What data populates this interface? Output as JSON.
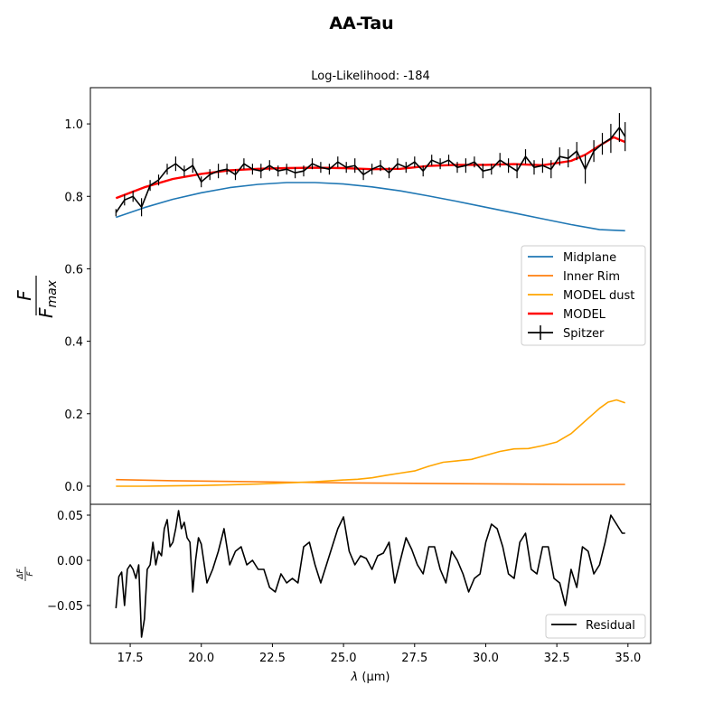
{
  "figure": {
    "title": "AA-Tau",
    "subtitle": "Log-Likelihood: -184"
  },
  "chart_data": [
    {
      "type": "line",
      "panel": "main",
      "title": "Log-Likelihood: -184",
      "xlabel": "",
      "ylabel_num": "F",
      "ylabel_den": "F",
      "ylabel_den_sub": "max",
      "xlim": [
        16.1,
        35.8
      ],
      "ylim": [
        -0.05,
        1.1
      ],
      "yticks": [
        0.0,
        0.2,
        0.4,
        0.6,
        0.8,
        1.0
      ],
      "ytick_labels": [
        "0.0",
        "0.2",
        "0.4",
        "0.6",
        "0.8",
        "1.0"
      ],
      "legend_position": "center-right",
      "series": [
        {
          "name": "Midplane",
          "color": "#1f77b4",
          "x": [
            17.0,
            18.0,
            19.0,
            20.0,
            21.0,
            22.0,
            23.0,
            24.0,
            25.0,
            26.0,
            27.0,
            28.0,
            29.0,
            30.0,
            31.0,
            32.0,
            33.0,
            34.0,
            34.9
          ],
          "y": [
            0.742,
            0.769,
            0.792,
            0.81,
            0.824,
            0.833,
            0.838,
            0.838,
            0.834,
            0.826,
            0.815,
            0.801,
            0.786,
            0.77,
            0.754,
            0.738,
            0.722,
            0.708,
            0.705
          ]
        },
        {
          "name": "Inner Rim",
          "color": "#ff7f0e",
          "x": [
            17.0,
            19.0,
            21.0,
            23.0,
            25.0,
            27.0,
            29.0,
            31.0,
            33.0,
            34.9
          ],
          "y": [
            0.018,
            0.015,
            0.013,
            0.011,
            0.009,
            0.008,
            0.007,
            0.006,
            0.005,
            0.005
          ]
        },
        {
          "name": "MODEL dust",
          "color": "#ffa500",
          "x": [
            17.0,
            18.0,
            19.0,
            20.0,
            21.0,
            22.0,
            23.0,
            24.0,
            25.0,
            25.5,
            26.0,
            26.5,
            27.0,
            27.5,
            28.0,
            28.5,
            29.0,
            29.5,
            30.0,
            30.5,
            31.0,
            31.5,
            32.0,
            32.5,
            33.0,
            33.5,
            34.0,
            34.3,
            34.6,
            34.9
          ],
          "y": [
            0.0,
            0.0,
            0.001,
            0.002,
            0.004,
            0.006,
            0.009,
            0.012,
            0.017,
            0.019,
            0.023,
            0.03,
            0.036,
            0.042,
            0.055,
            0.066,
            0.07,
            0.074,
            0.085,
            0.096,
            0.103,
            0.104,
            0.112,
            0.122,
            0.145,
            0.18,
            0.215,
            0.232,
            0.238,
            0.23
          ]
        },
        {
          "name": "MODEL",
          "color": "#ff0000",
          "x": [
            17.0,
            18.0,
            19.0,
            20.0,
            21.0,
            22.0,
            23.0,
            24.0,
            25.0,
            26.0,
            27.0,
            28.0,
            29.0,
            30.0,
            31.0,
            32.0,
            33.0,
            33.5,
            34.0,
            34.5,
            34.9
          ],
          "y": [
            0.795,
            0.825,
            0.848,
            0.862,
            0.872,
            0.876,
            0.878,
            0.879,
            0.878,
            0.875,
            0.876,
            0.884,
            0.887,
            0.887,
            0.889,
            0.886,
            0.898,
            0.915,
            0.94,
            0.963,
            0.95
          ]
        },
        {
          "name": "Spitzer",
          "color": "#000000",
          "style": "errorbar",
          "x": [
            17.0,
            17.3,
            17.6,
            17.9,
            18.2,
            18.5,
            18.8,
            19.1,
            19.4,
            19.7,
            20.0,
            20.3,
            20.6,
            20.9,
            21.2,
            21.5,
            21.8,
            22.1,
            22.4,
            22.7,
            23.0,
            23.3,
            23.6,
            23.9,
            24.2,
            24.5,
            24.8,
            25.1,
            25.4,
            25.7,
            26.0,
            26.3,
            26.6,
            26.9,
            27.2,
            27.5,
            27.8,
            28.1,
            28.4,
            28.7,
            29.0,
            29.3,
            29.6,
            29.9,
            30.2,
            30.5,
            30.8,
            31.1,
            31.4,
            31.7,
            32.0,
            32.3,
            32.6,
            32.9,
            33.2,
            33.5,
            33.8,
            34.1,
            34.4,
            34.7,
            34.9
          ],
          "y": [
            0.755,
            0.79,
            0.8,
            0.77,
            0.83,
            0.845,
            0.875,
            0.89,
            0.87,
            0.885,
            0.84,
            0.86,
            0.87,
            0.875,
            0.86,
            0.89,
            0.875,
            0.87,
            0.885,
            0.87,
            0.875,
            0.865,
            0.87,
            0.89,
            0.88,
            0.875,
            0.895,
            0.88,
            0.885,
            0.86,
            0.875,
            0.885,
            0.865,
            0.89,
            0.88,
            0.895,
            0.87,
            0.9,
            0.89,
            0.9,
            0.88,
            0.885,
            0.895,
            0.87,
            0.875,
            0.9,
            0.885,
            0.87,
            0.91,
            0.88,
            0.885,
            0.875,
            0.91,
            0.905,
            0.925,
            0.875,
            0.925,
            0.945,
            0.96,
            0.99,
            0.965
          ],
          "yerr": [
            0.01,
            0.015,
            0.015,
            0.025,
            0.015,
            0.015,
            0.015,
            0.02,
            0.015,
            0.02,
            0.015,
            0.015,
            0.02,
            0.015,
            0.015,
            0.015,
            0.015,
            0.02,
            0.015,
            0.015,
            0.015,
            0.015,
            0.015,
            0.015,
            0.015,
            0.015,
            0.015,
            0.015,
            0.02,
            0.015,
            0.015,
            0.015,
            0.015,
            0.015,
            0.015,
            0.015,
            0.015,
            0.015,
            0.015,
            0.015,
            0.015,
            0.02,
            0.015,
            0.02,
            0.015,
            0.02,
            0.02,
            0.02,
            0.02,
            0.02,
            0.02,
            0.025,
            0.025,
            0.025,
            0.025,
            0.04,
            0.03,
            0.03,
            0.04,
            0.04,
            0.04
          ]
        }
      ]
    },
    {
      "type": "line",
      "panel": "residual",
      "xlabel_symbol": "λ",
      "xlabel_unit": "(μm)",
      "ylabel_num": "ΔF",
      "ylabel_den": "F",
      "xlim": [
        16.1,
        35.8
      ],
      "ylim": [
        -0.092,
        0.062
      ],
      "xticks": [
        17.5,
        20.0,
        22.5,
        25.0,
        27.5,
        30.0,
        32.5,
        35.0
      ],
      "xtick_labels": [
        "17.5",
        "20.0",
        "22.5",
        "25.0",
        "27.5",
        "30.0",
        "32.5",
        "35.0"
      ],
      "yticks": [
        -0.05,
        0.0,
        0.05
      ],
      "ytick_labels": [
        "−0.05",
        "0.00",
        "0.05"
      ],
      "legend_position": "bottom-right",
      "series": [
        {
          "name": "Residual",
          "color": "#000000",
          "x": [
            17.0,
            17.1,
            17.2,
            17.3,
            17.4,
            17.5,
            17.6,
            17.7,
            17.8,
            17.9,
            18.0,
            18.1,
            18.2,
            18.3,
            18.4,
            18.5,
            18.6,
            18.7,
            18.8,
            18.9,
            19.0,
            19.1,
            19.2,
            19.3,
            19.4,
            19.5,
            19.6,
            19.7,
            19.8,
            19.9,
            20.0,
            20.2,
            20.4,
            20.6,
            20.8,
            21.0,
            21.2,
            21.4,
            21.6,
            21.8,
            22.0,
            22.2,
            22.4,
            22.6,
            22.8,
            23.0,
            23.2,
            23.4,
            23.6,
            23.8,
            24.0,
            24.2,
            24.4,
            24.6,
            24.8,
            25.0,
            25.2,
            25.4,
            25.6,
            25.8,
            26.0,
            26.2,
            26.4,
            26.6,
            26.8,
            27.0,
            27.2,
            27.4,
            27.6,
            27.8,
            28.0,
            28.2,
            28.4,
            28.6,
            28.8,
            29.0,
            29.2,
            29.4,
            29.6,
            29.8,
            30.0,
            30.2,
            30.4,
            30.6,
            30.8,
            31.0,
            31.2,
            31.4,
            31.6,
            31.8,
            32.0,
            32.2,
            32.4,
            32.6,
            32.8,
            33.0,
            33.2,
            33.4,
            33.6,
            33.8,
            34.0,
            34.2,
            34.4,
            34.6,
            34.8,
            34.9
          ],
          "y": [
            -0.053,
            -0.018,
            -0.013,
            -0.05,
            -0.01,
            -0.005,
            -0.01,
            -0.02,
            -0.005,
            -0.085,
            -0.065,
            -0.01,
            -0.005,
            0.02,
            -0.005,
            0.01,
            0.005,
            0.035,
            0.045,
            0.015,
            0.02,
            0.035,
            0.055,
            0.035,
            0.042,
            0.025,
            0.02,
            -0.035,
            0.0,
            0.025,
            0.018,
            -0.025,
            -0.01,
            0.01,
            0.035,
            -0.005,
            0.01,
            0.015,
            -0.005,
            0.0,
            -0.01,
            -0.01,
            -0.03,
            -0.035,
            -0.015,
            -0.025,
            -0.02,
            -0.025,
            0.015,
            0.02,
            -0.005,
            -0.025,
            -0.005,
            0.015,
            0.035,
            0.048,
            0.01,
            -0.005,
            0.005,
            0.002,
            -0.01,
            0.005,
            0.008,
            0.02,
            -0.025,
            0.0,
            0.025,
            0.012,
            -0.005,
            -0.015,
            0.015,
            0.015,
            -0.01,
            -0.025,
            0.01,
            0.0,
            -0.015,
            -0.035,
            -0.02,
            -0.015,
            0.02,
            0.04,
            0.035,
            0.015,
            -0.015,
            -0.02,
            0.02,
            0.03,
            -0.01,
            -0.015,
            0.015,
            0.015,
            -0.02,
            -0.025,
            -0.05,
            -0.01,
            -0.03,
            0.015,
            0.01,
            -0.015,
            -0.005,
            0.02,
            0.05,
            0.04,
            0.03,
            0.03
          ]
        }
      ]
    }
  ]
}
